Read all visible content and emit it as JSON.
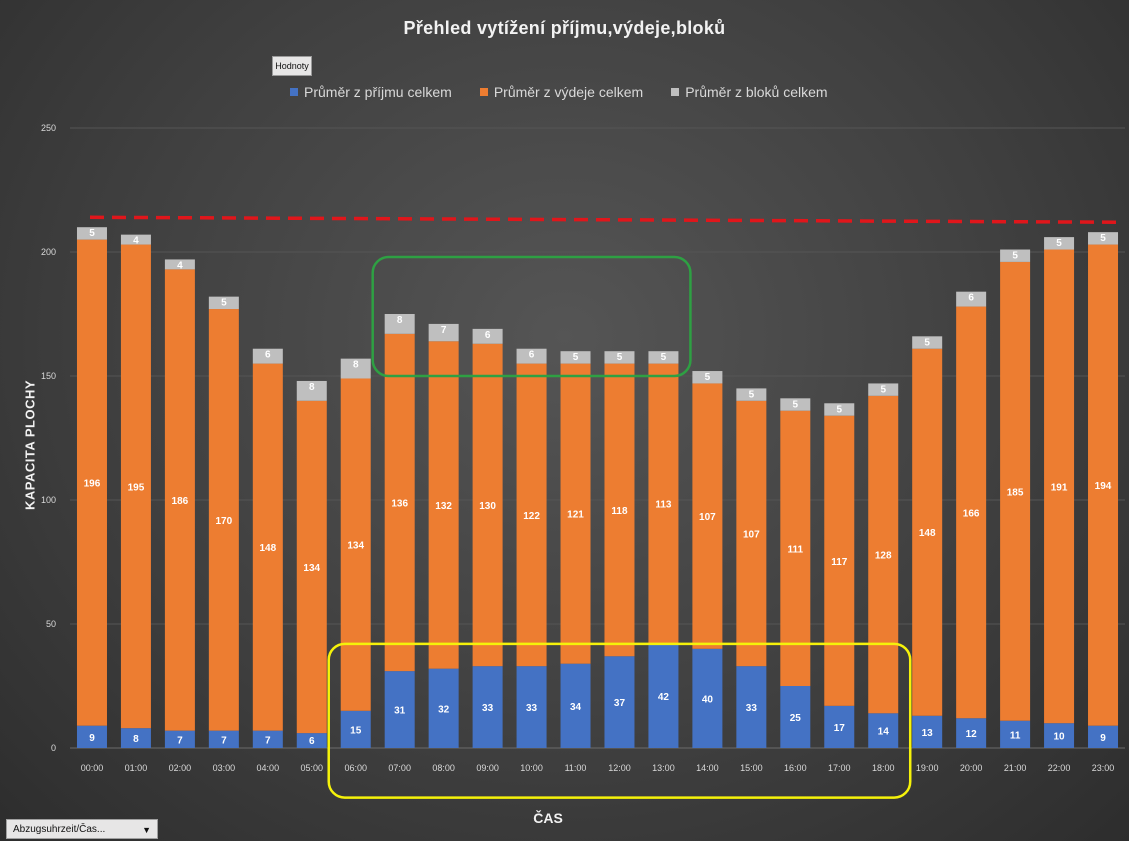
{
  "chart_data": {
    "type": "bar",
    "stacked": true,
    "title": "Přehled vytížení příjmu,výdeje,bloků",
    "xlabel": "ČAS",
    "ylabel": "KAPACITA PLOCHY",
    "ylim": [
      0,
      250
    ],
    "yticks": [
      0,
      50,
      100,
      150,
      200,
      250
    ],
    "grid": true,
    "legend_position": "top",
    "categories": [
      "00:00",
      "01:00",
      "02:00",
      "03:00",
      "04:00",
      "05:00",
      "06:00",
      "07:00",
      "08:00",
      "09:00",
      "10:00",
      "11:00",
      "12:00",
      "13:00",
      "14:00",
      "15:00",
      "16:00",
      "17:00",
      "18:00",
      "19:00",
      "20:00",
      "21:00",
      "22:00",
      "23:00"
    ],
    "series": [
      {
        "name": "Průměr z příjmu celkem",
        "color": "#4472c4",
        "values": [
          9,
          8,
          7,
          7,
          7,
          6,
          15,
          31,
          32,
          33,
          33,
          34,
          37,
          42,
          40,
          33,
          25,
          17,
          14,
          13,
          12,
          11,
          10,
          9
        ]
      },
      {
        "name": "Průměr z výdeje celkem",
        "color": "#ed7d31",
        "values": [
          196,
          195,
          186,
          170,
          148,
          134,
          134,
          136,
          132,
          130,
          122,
          121,
          118,
          113,
          107,
          107,
          111,
          117,
          128,
          148,
          166,
          185,
          191,
          194
        ]
      },
      {
        "name": "Průměr z bloků celkem",
        "color": "#bfbfbf",
        "values": [
          5,
          4,
          4,
          5,
          6,
          8,
          8,
          8,
          7,
          6,
          6,
          5,
          5,
          5,
          5,
          5,
          5,
          5,
          5,
          5,
          6,
          5,
          5,
          5
        ]
      }
    ],
    "annotations": {
      "capacity_line": {
        "from_value": 214,
        "to_value": 212,
        "color": "#e0161b",
        "style": "dashed"
      },
      "green_box": {
        "x_from": "07:00",
        "x_to": "13:00",
        "y_from": 150,
        "y_to": 198,
        "color": "#2ea043"
      },
      "yellow_box": {
        "x_from": "06:00",
        "x_to": "18:00",
        "y_from": -20,
        "y_to": 42,
        "color": "#f5f20a"
      }
    }
  },
  "ui": {
    "values_button_label": "Hodnoty",
    "field_filter_label": "Abzugsuhrzeit/Čas..."
  }
}
